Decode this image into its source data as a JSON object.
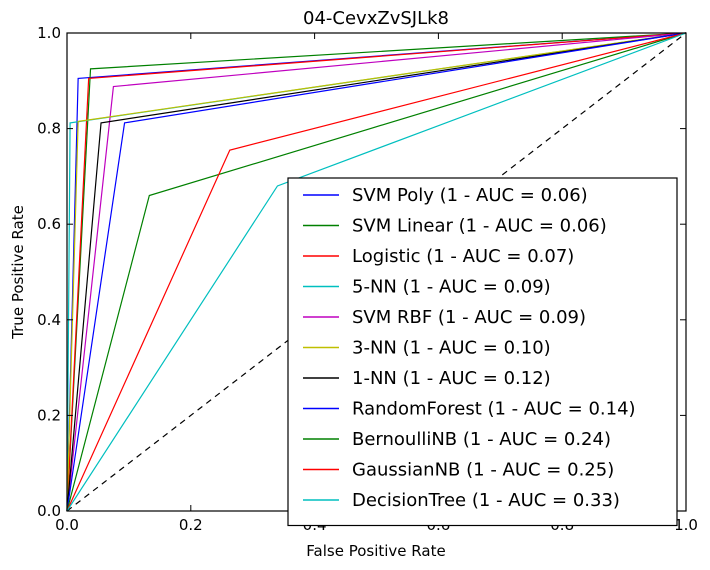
{
  "chart_data": {
    "type": "line",
    "title": "04-CevxZvSJLk8",
    "xlabel": "False Positive Rate",
    "ylabel": "True Positive Rate",
    "xlim": [
      0,
      1
    ],
    "ylim": [
      0,
      1
    ],
    "xticks": [
      "0.0",
      "0.2",
      "0.4",
      "0.6",
      "0.8",
      "1.0"
    ],
    "yticks": [
      "0.0",
      "0.2",
      "0.4",
      "0.6",
      "0.8",
      "1.0"
    ],
    "grid": false,
    "legend_position": "lower-right",
    "diagonal": {
      "x": [
        0,
        1
      ],
      "y": [
        0,
        1
      ],
      "color": "#000000",
      "dashed": true
    },
    "series": [
      {
        "name": "SVM Poly (1 - AUC = 0.06)",
        "color": "#0000ff",
        "x": [
          0,
          0.018,
          1
        ],
        "y": [
          0,
          0.905,
          1
        ]
      },
      {
        "name": "SVM Linear (1 - AUC = 0.06)",
        "color": "#008000",
        "x": [
          0,
          0.038,
          1
        ],
        "y": [
          0,
          0.925,
          1
        ]
      },
      {
        "name": "Logistic (1 - AUC = 0.07)",
        "color": "#ff0000",
        "x": [
          0,
          0.035,
          1
        ],
        "y": [
          0,
          0.905,
          1
        ]
      },
      {
        "name": "5-NN (1 - AUC = 0.09)",
        "color": "#00bfbf",
        "x": [
          0,
          0.005,
          1
        ],
        "y": [
          0,
          0.812,
          1
        ]
      },
      {
        "name": "SVM RBF (1 - AUC = 0.09)",
        "color": "#bf00bf",
        "x": [
          0,
          0.075,
          1
        ],
        "y": [
          0,
          0.888,
          1
        ]
      },
      {
        "name": "3-NN (1 - AUC = 0.10)",
        "color": "#bfbf00",
        "x": [
          0,
          0.018,
          1
        ],
        "y": [
          0,
          0.815,
          1
        ]
      },
      {
        "name": "1-NN (1 - AUC = 0.12)",
        "color": "#000000",
        "x": [
          0,
          0.055,
          1
        ],
        "y": [
          0,
          0.812,
          1
        ]
      },
      {
        "name": "RandomForest (1 - AUC = 0.14)",
        "color": "#0000ff",
        "x": [
          0,
          0.093,
          1
        ],
        "y": [
          0,
          0.812,
          1
        ]
      },
      {
        "name": "BernoulliNB (1 - AUC = 0.24)",
        "color": "#008000",
        "x": [
          0,
          0.133,
          1
        ],
        "y": [
          0,
          0.66,
          1
        ]
      },
      {
        "name": "GaussianNB (1 - AUC = 0.25)",
        "color": "#ff0000",
        "x": [
          0,
          0.263,
          1
        ],
        "y": [
          0,
          0.755,
          1
        ]
      },
      {
        "name": "DecisionTree (1 - AUC = 0.33)",
        "color": "#00bfbf",
        "x": [
          0,
          0.34,
          1
        ],
        "y": [
          0,
          0.68,
          1
        ]
      }
    ]
  }
}
